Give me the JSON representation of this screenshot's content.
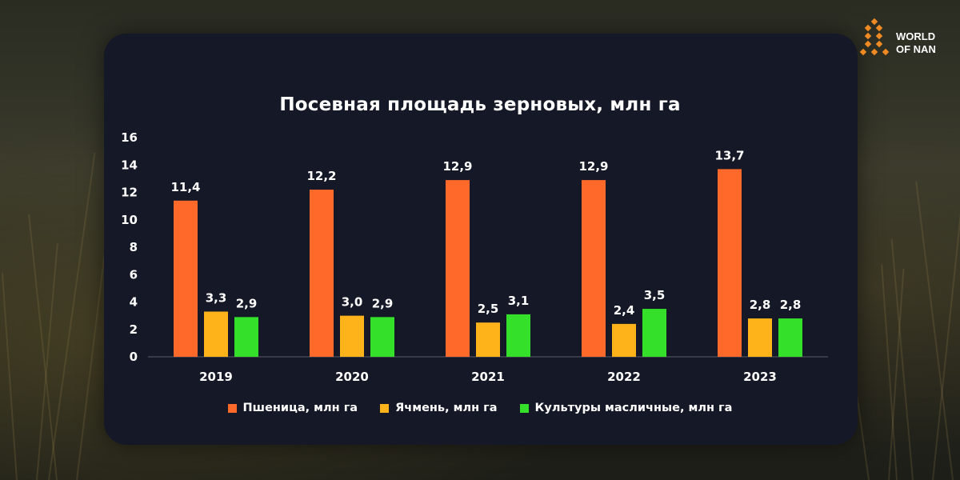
{
  "logo": {
    "line1": "WORLD",
    "line2": "OF NAN"
  },
  "chart_data": {
    "type": "bar",
    "title": "Посевная площадь зерновых, млн га",
    "categories": [
      "2019",
      "2020",
      "2021",
      "2022",
      "2023"
    ],
    "series": [
      {
        "name": "Пшеница, млн га",
        "color": "#ff6a2a",
        "values": [
          11.4,
          12.2,
          12.9,
          12.9,
          13.7
        ],
        "labels": [
          "11,4",
          "12,2",
          "12,9",
          "12,9",
          "13,7"
        ]
      },
      {
        "name": "Ячмень, млн га",
        "color": "#ffb31a",
        "values": [
          3.3,
          3.0,
          2.5,
          2.4,
          2.8
        ],
        "labels": [
          "3,3",
          "3,0",
          "2,5",
          "2,4",
          "2,8"
        ]
      },
      {
        "name": "Культуры масличные, млн га",
        "color": "#35e02a",
        "values": [
          2.9,
          2.9,
          3.1,
          3.5,
          2.8
        ],
        "labels": [
          "2,9",
          "2,9",
          "3,1",
          "3,5",
          "2,8"
        ]
      }
    ],
    "ylim": [
      0,
      16
    ],
    "yticks": [
      "0",
      "2",
      "4",
      "6",
      "8",
      "10",
      "12",
      "14",
      "16"
    ],
    "grid": false,
    "legend": "bottom"
  }
}
